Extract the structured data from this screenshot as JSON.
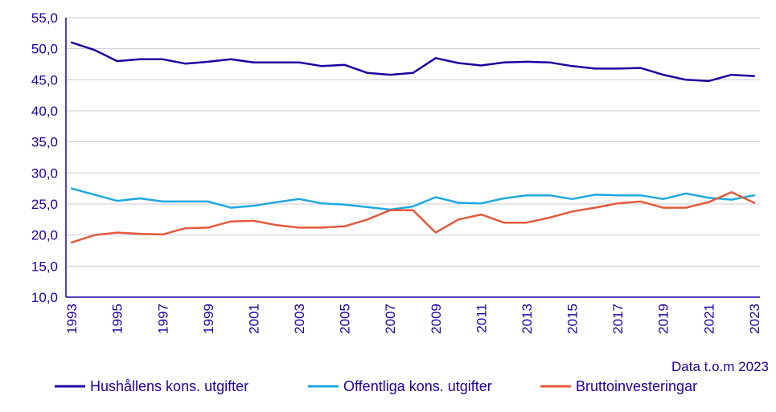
{
  "chart_data": {
    "type": "line",
    "title": "",
    "xlabel": "",
    "ylabel": "",
    "note": "Data t.o.m 2023",
    "ylim": [
      10,
      55
    ],
    "yticks": [
      "10,0",
      "15,0",
      "20,0",
      "25,0",
      "30,0",
      "35,0",
      "40,0",
      "45,0",
      "50,0",
      "55,0"
    ],
    "ytick_values": [
      10,
      15,
      20,
      25,
      30,
      35,
      40,
      45,
      50,
      55
    ],
    "xticks": [
      "1993",
      "1995",
      "1997",
      "1999",
      "2001",
      "2003",
      "2005",
      "2007",
      "2009",
      "2011",
      "2013",
      "2015",
      "2017",
      "2019",
      "2021",
      "2023"
    ],
    "xtick_values": [
      1993,
      1995,
      1997,
      1999,
      2001,
      2003,
      2005,
      2007,
      2009,
      2011,
      2013,
      2015,
      2017,
      2019,
      2021,
      2023
    ],
    "grid": "horizontal",
    "legend_position": "bottom",
    "x": [
      1993,
      1994,
      1995,
      1996,
      1997,
      1998,
      1999,
      2000,
      2001,
      2002,
      2003,
      2004,
      2005,
      2006,
      2007,
      2008,
      2009,
      2010,
      2011,
      2012,
      2013,
      2014,
      2015,
      2016,
      2017,
      2018,
      2019,
      2020,
      2021,
      2022,
      2023
    ],
    "series": [
      {
        "name": "Hushållens kons. utgifter",
        "color": "#1e00a0",
        "values": [
          51.0,
          49.8,
          48.0,
          48.3,
          48.3,
          47.6,
          47.9,
          48.3,
          47.8,
          47.8,
          47.8,
          47.2,
          47.4,
          46.1,
          45.8,
          46.1,
          48.5,
          47.7,
          47.3,
          47.8,
          47.9,
          47.8,
          47.2,
          46.8,
          46.8,
          46.9,
          45.8,
          45.0,
          44.8,
          45.8,
          45.6
        ]
      },
      {
        "name": "Offentliga kons. utgifter",
        "color": "#1ea8e0",
        "values": [
          27.5,
          26.5,
          25.5,
          25.9,
          25.4,
          25.4,
          25.4,
          24.4,
          24.7,
          25.3,
          25.8,
          25.1,
          24.9,
          24.5,
          24.1,
          24.6,
          26.1,
          25.2,
          25.1,
          25.9,
          26.4,
          26.4,
          25.8,
          26.5,
          26.4,
          26.4,
          25.8,
          26.7,
          26.0,
          25.7,
          26.4
        ]
      },
      {
        "name": "Bruttoinvesteringar",
        "color": "#e35a3c",
        "values": [
          18.8,
          20.0,
          20.4,
          20.2,
          20.1,
          21.1,
          21.2,
          22.2,
          22.3,
          21.6,
          21.2,
          21.2,
          21.4,
          22.5,
          24.0,
          24.0,
          20.4,
          22.5,
          23.3,
          22.0,
          22.0,
          22.8,
          23.8,
          24.4,
          25.1,
          25.4,
          24.4,
          24.4,
          25.3,
          26.9,
          25.2
        ]
      }
    ]
  }
}
